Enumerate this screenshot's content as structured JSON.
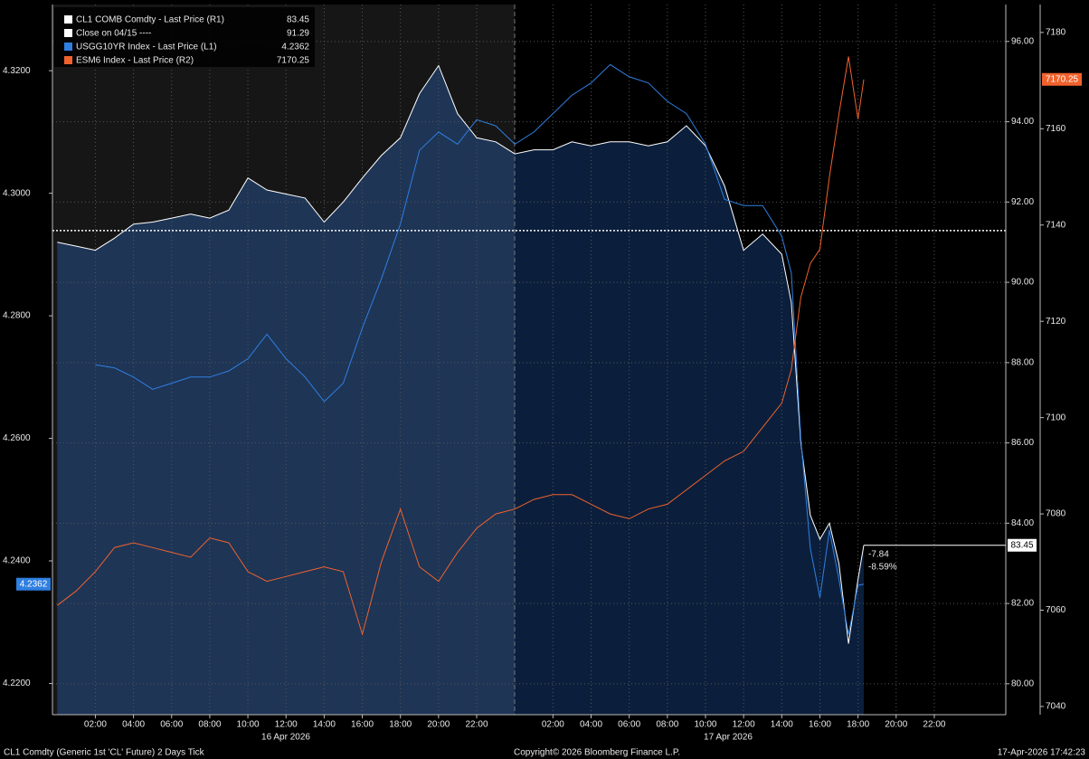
{
  "chart_data": {
    "type": "line",
    "footer": {
      "left": "CL1 Comdty (Generic 1st 'CL' Future) 2 Days Tick",
      "center": "Copyright© 2026 Bloomberg Finance L.P.",
      "right": "17-Apr-2026 17:42:23"
    },
    "date_labels": [
      "16 Apr 2026",
      "17 Apr 2026"
    ],
    "xlim": [
      -0.25,
      49.75
    ],
    "xticks": [
      {
        "value": 2,
        "label": "02:00"
      },
      {
        "value": 4,
        "label": "04:00"
      },
      {
        "value": 6,
        "label": "06:00"
      },
      {
        "value": 8,
        "label": "08:00"
      },
      {
        "value": 10,
        "label": "10:00"
      },
      {
        "value": 12,
        "label": "12:00"
      },
      {
        "value": 14,
        "label": "14:00"
      },
      {
        "value": 16,
        "label": "16:00"
      },
      {
        "value": 18,
        "label": "18:00"
      },
      {
        "value": 20,
        "label": "20:00"
      },
      {
        "value": 22,
        "label": "22:00"
      },
      {
        "value": 26,
        "label": "02:00"
      },
      {
        "value": 28,
        "label": "04:00"
      },
      {
        "value": 30,
        "label": "06:00"
      },
      {
        "value": 32,
        "label": "08:00"
      },
      {
        "value": 34,
        "label": "10:00"
      },
      {
        "value": 36,
        "label": "12:00"
      },
      {
        "value": 38,
        "label": "14:00"
      },
      {
        "value": 40,
        "label": "16:00"
      },
      {
        "value": 42,
        "label": "18:00"
      },
      {
        "value": 44,
        "label": "20:00"
      },
      {
        "value": 46,
        "label": "22:00"
      }
    ],
    "ylim": [
      4.2149,
      4.3308
    ],
    "yticks": [
      {
        "value": 4.22,
        "label": "4.2200"
      },
      {
        "value": 4.24,
        "label": "4.2400"
      },
      {
        "value": 4.26,
        "label": "4.2600"
      },
      {
        "value": 4.28,
        "label": "4.2800"
      },
      {
        "value": 4.3,
        "label": "4.3000"
      },
      {
        "value": 4.32,
        "label": "4.3200"
      }
    ],
    "y2lim": [
      79.23,
      96.92
    ],
    "y2ticks": [
      {
        "value": 80,
        "label": "80.00"
      },
      {
        "value": 82,
        "label": "82.00"
      },
      {
        "value": 84,
        "label": "84.00"
      },
      {
        "value": 86,
        "label": "86.00"
      },
      {
        "value": 88,
        "label": "88.00"
      },
      {
        "value": 90,
        "label": "90.00"
      },
      {
        "value": 92,
        "label": "92.00"
      },
      {
        "value": 94,
        "label": "94.00"
      },
      {
        "value": 96,
        "label": "96.00"
      }
    ],
    "y3lim": [
      7038.3,
      7185.8
    ],
    "y3ticks": [
      7040,
      7060,
      7080,
      7100,
      7120,
      7140,
      7160,
      7180
    ],
    "grid": true,
    "x": [
      0,
      1,
      2,
      3,
      4,
      5,
      6,
      7,
      8,
      9,
      10,
      11,
      12,
      13,
      14,
      15,
      16,
      17,
      18,
      19,
      20,
      21,
      22,
      23,
      24,
      25,
      26,
      27,
      28,
      29,
      30,
      31,
      32,
      33,
      34,
      35,
      36,
      37,
      38,
      38.5,
      39,
      39.5,
      40,
      40.5,
      41,
      41.5,
      42,
      42.3
    ],
    "series": [
      {
        "name": "CL1 COMB Comdty - Last Price (R1)",
        "color": "#ffffff",
        "axis": "y2",
        "area": true,
        "values": [
          91.0,
          90.9,
          90.8,
          91.1,
          91.45,
          91.5,
          91.6,
          91.7,
          91.6,
          91.8,
          92.6,
          92.3,
          92.2,
          92.1,
          91.5,
          92.0,
          92.6,
          93.16,
          93.6,
          94.7,
          95.4,
          94.2,
          93.6,
          93.5,
          93.2,
          93.3,
          93.3,
          93.5,
          93.4,
          93.5,
          93.5,
          93.4,
          93.5,
          93.9,
          93.4,
          92.4,
          90.8,
          91.2,
          90.7,
          89.5,
          86.0,
          84.2,
          83.6,
          84.0,
          83.0,
          81.0,
          82.6,
          83.45
        ]
      },
      {
        "name": "USGG10YR Index - Last Price (L1)",
        "color": "#2f7fe0",
        "axis": "y",
        "values": [
          null,
          null,
          4.272,
          4.2715,
          4.27,
          4.268,
          4.269,
          4.27,
          4.27,
          4.271,
          4.273,
          4.277,
          4.273,
          4.27,
          4.266,
          4.269,
          4.278,
          4.286,
          4.295,
          4.307,
          4.31,
          4.308,
          4.312,
          4.311,
          4.308,
          4.31,
          4.313,
          4.316,
          4.318,
          4.321,
          4.319,
          4.318,
          4.315,
          4.313,
          4.308,
          4.299,
          4.298,
          4.298,
          4.293,
          4.287,
          4.26,
          4.242,
          4.234,
          4.245,
          4.237,
          4.228,
          4.236,
          4.2362
        ]
      },
      {
        "name": "ESM6 Index - Last Price (R2)",
        "color": "#f0622d",
        "axis": "y3",
        "values": [
          7061,
          7064,
          7068,
          7073,
          7074,
          7073,
          7072,
          7071,
          7075,
          7074,
          7068,
          7066,
          7067,
          7068,
          7069,
          7068,
          7055,
          7070,
          7081,
          7069,
          7066,
          7072,
          7077,
          7080,
          7081,
          7083,
          7084,
          7084,
          7082,
          7080,
          7079,
          7081,
          7082,
          7085,
          7088,
          7091,
          7093,
          7098,
          7103,
          7110,
          7125,
          7132,
          7135,
          7150,
          7163,
          7175,
          7162,
          7170.25
        ]
      }
    ],
    "reference_line": {
      "name": "Close on 04/15 ----",
      "value": 91.29,
      "axis": "y2",
      "color": "#ffffff"
    },
    "annotations": [
      "-7.84",
      "-8.59%"
    ]
  }
}
